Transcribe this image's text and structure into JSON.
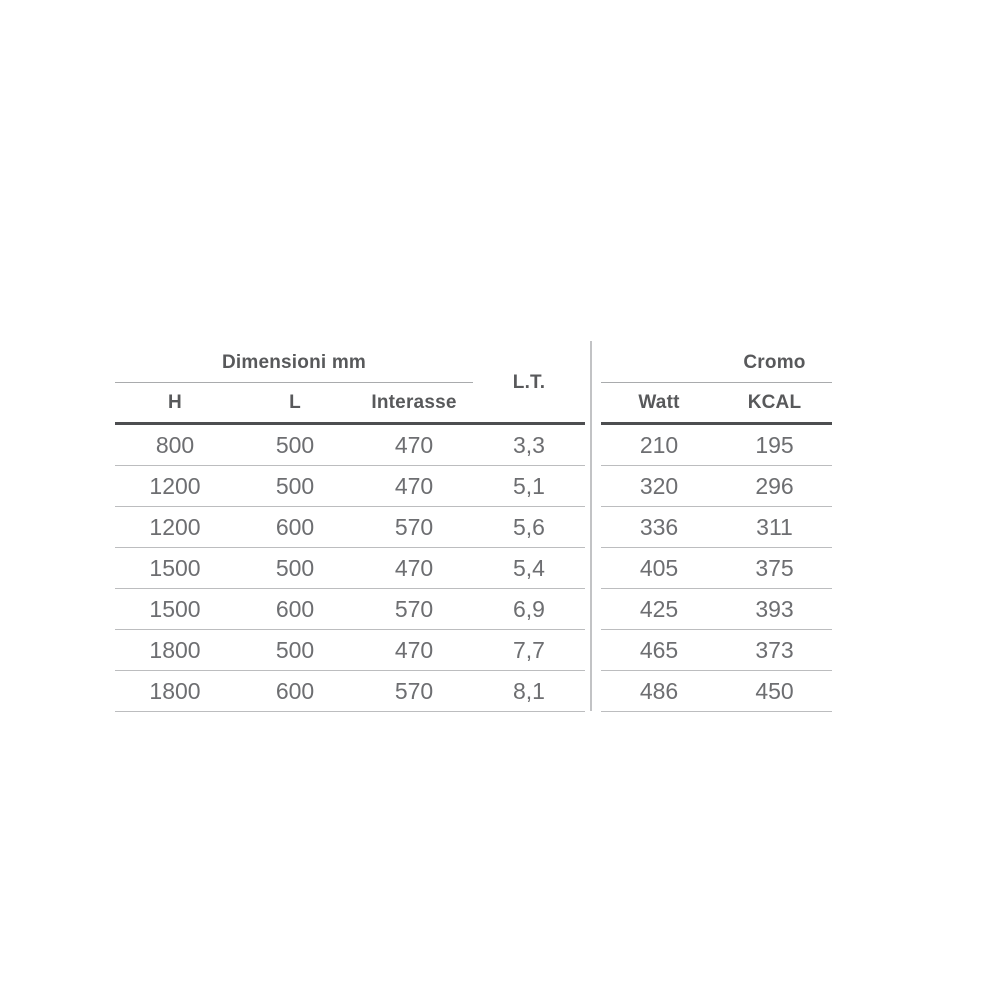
{
  "table": {
    "left": {
      "group_label": "Dimensioni mm",
      "lt_label": "L.T.",
      "columns": [
        "H",
        "L",
        "Interasse"
      ]
    },
    "right": {
      "group_label": "Cromo",
      "columns": [
        "Watt",
        "KCAL"
      ]
    },
    "rows": [
      {
        "h": "800",
        "l": "500",
        "interasse": "470",
        "lt": "3,3",
        "watt": "210",
        "kcal": "195"
      },
      {
        "h": "1200",
        "l": "500",
        "interasse": "470",
        "lt": "5,1",
        "watt": "320",
        "kcal": "296"
      },
      {
        "h": "1200",
        "l": "600",
        "interasse": "570",
        "lt": "5,6",
        "watt": "336",
        "kcal": "311"
      },
      {
        "h": "1500",
        "l": "500",
        "interasse": "470",
        "lt": "5,4",
        "watt": "405",
        "kcal": "375"
      },
      {
        "h": "1500",
        "l": "600",
        "interasse": "570",
        "lt": "6,9",
        "watt": "425",
        "kcal": "393"
      },
      {
        "h": "1800",
        "l": "500",
        "interasse": "470",
        "lt": "7,7",
        "watt": "465",
        "kcal": "373"
      },
      {
        "h": "1800",
        "l": "600",
        "interasse": "570",
        "lt": "8,1",
        "watt": "486",
        "kcal": "450"
      }
    ],
    "colors": {
      "header_text": "#58595b",
      "data_text": "#6d6e71",
      "thin_line": "#bcbdbf",
      "thick_line": "#4d4e50",
      "divider_line": "#c2c3c5",
      "background": "#ffffff"
    }
  }
}
